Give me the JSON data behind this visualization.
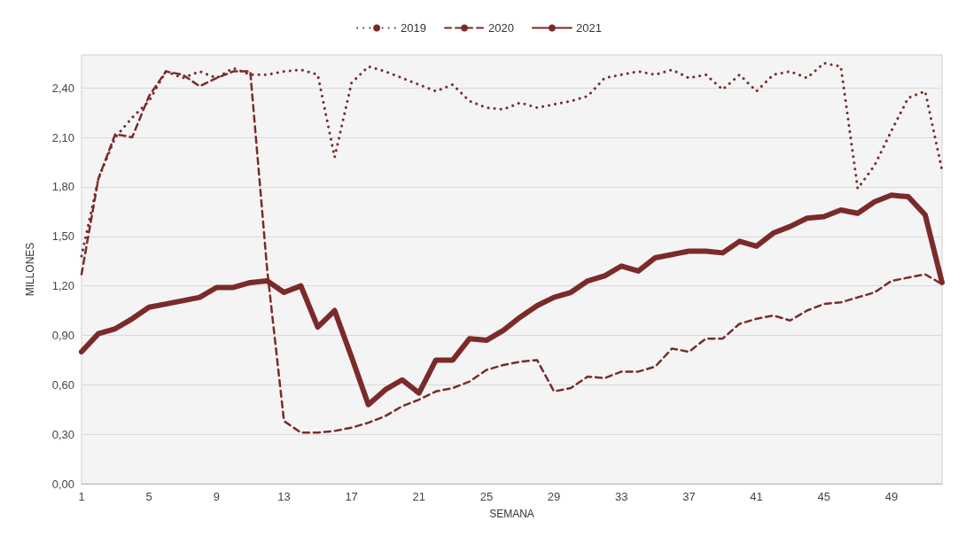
{
  "chart_data": {
    "type": "line",
    "xlabel": "SEMANA",
    "ylabel": "MILLONES",
    "categories": [
      "1",
      null,
      null,
      null,
      "5",
      null,
      null,
      null,
      "9",
      null,
      null,
      null,
      "13",
      null,
      null,
      null,
      "17",
      null,
      null,
      null,
      "21",
      null,
      null,
      null,
      "25",
      null,
      null,
      null,
      "29",
      null,
      null,
      null,
      "33",
      null,
      null,
      null,
      "37",
      null,
      null,
      null,
      "41",
      null,
      null,
      null,
      "45",
      null,
      null,
      null,
      "49",
      null,
      null,
      null
    ],
    "ylim": [
      0,
      2.6
    ],
    "yticks": [
      {
        "value": 0,
        "label": "0,00"
      },
      {
        "value": 0.3,
        "label": "0,30"
      },
      {
        "value": 0.6,
        "label": "0,60"
      },
      {
        "value": 0.9,
        "label": "0,90"
      },
      {
        "value": 1.2,
        "label": "1,20"
      },
      {
        "value": 1.5,
        "label": "1,50"
      },
      {
        "value": 1.8,
        "label": "1,80"
      },
      {
        "value": 2.1,
        "label": "2,10"
      },
      {
        "value": 2.4,
        "label": "2,40"
      }
    ],
    "grid": "y",
    "legend": "top",
    "marker": "none",
    "series": [
      {
        "name": "2019",
        "color": "#7b2a2a",
        "line_style": "dotted",
        "values": [
          1.38,
          1.85,
          2.1,
          2.22,
          2.32,
          2.5,
          2.46,
          2.5,
          2.46,
          2.52,
          2.48,
          2.48,
          2.5,
          2.51,
          2.48,
          1.98,
          2.43,
          2.53,
          2.5,
          2.46,
          2.42,
          2.38,
          2.42,
          2.32,
          2.28,
          2.27,
          2.31,
          2.28,
          2.3,
          2.32,
          2.35,
          2.46,
          2.48,
          2.5,
          2.48,
          2.51,
          2.46,
          2.48,
          2.39,
          2.48,
          2.38,
          2.48,
          2.5,
          2.46,
          2.55,
          2.53,
          1.79,
          1.93,
          2.14,
          2.34,
          2.38,
          1.9
        ]
      },
      {
        "name": "2020",
        "color": "#7b2a2a",
        "line_style": "dashed",
        "values": [
          1.27,
          1.85,
          2.12,
          2.1,
          2.35,
          2.5,
          2.48,
          2.41,
          2.46,
          2.5,
          2.5,
          1.3,
          0.38,
          0.31,
          0.31,
          0.32,
          0.34,
          0.37,
          0.41,
          0.47,
          0.51,
          0.56,
          0.58,
          0.62,
          0.69,
          0.72,
          0.74,
          0.75,
          0.56,
          0.58,
          0.65,
          0.64,
          0.68,
          0.68,
          0.71,
          0.82,
          0.8,
          0.88,
          0.88,
          0.97,
          1.0,
          1.02,
          0.99,
          1.05,
          1.09,
          1.1,
          1.13,
          1.16,
          1.23,
          1.25,
          1.27,
          1.21
        ]
      },
      {
        "name": "2021",
        "color": "#7b2a2a",
        "line_style": "solid",
        "values": [
          0.8,
          0.91,
          0.94,
          1.0,
          1.07,
          1.09,
          1.11,
          1.13,
          1.19,
          1.19,
          1.22,
          1.23,
          1.16,
          1.2,
          0.95,
          1.05,
          0.77,
          0.48,
          0.57,
          0.63,
          0.55,
          0.75,
          0.75,
          0.88,
          0.87,
          0.93,
          1.01,
          1.08,
          1.13,
          1.16,
          1.23,
          1.26,
          1.32,
          1.29,
          1.37,
          1.39,
          1.41,
          1.41,
          1.4,
          1.47,
          1.44,
          1.52,
          1.56,
          1.61,
          1.62,
          1.66,
          1.64,
          1.71,
          1.75,
          1.74,
          1.63,
          1.22
        ]
      }
    ]
  }
}
